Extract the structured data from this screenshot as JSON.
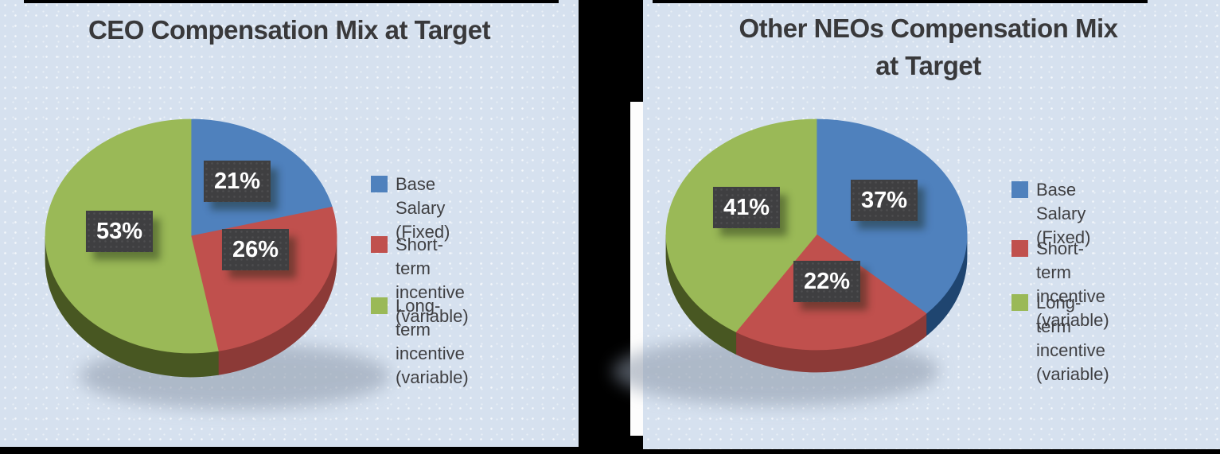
{
  "page": {
    "background_color": "#000000",
    "panel_color": "#d6e1ef",
    "divider_strip_color": "#fdfdfd",
    "title_text_color": "#39393b",
    "legend_text_color": "#3f3f42",
    "value_label_box_color": "#3f3f41",
    "value_label_text_color": "#ffffff"
  },
  "chart_data": [
    {
      "type": "pie",
      "effect": "3d",
      "title": "CEO Compensation Mix at Target",
      "legend_position": "right",
      "categories": [
        "Base Salary (Fixed)",
        "Short-term incentive (variable)",
        "Long-term incentive (variable)"
      ],
      "values": [
        21,
        26,
        53
      ],
      "unit": "%",
      "value_labels": [
        "21%",
        "26%",
        "53%"
      ],
      "series_colors": [
        "#4f81bd",
        "#c0504d",
        "#9ab957"
      ],
      "side_colors": [
        "#1f4570",
        "#8c3a37",
        "#485722"
      ],
      "legend": [
        {
          "color": "#4f81bd",
          "label": "Base Salary (Fixed)"
        },
        {
          "color": "#c0504d",
          "label": "Short-term\nincentive (variable)"
        },
        {
          "color": "#9ab957",
          "label": "Long-term\nincentive (variable)"
        }
      ]
    },
    {
      "type": "pie",
      "effect": "3d",
      "title": "Other NEOs Compensation Mix\nat Target",
      "legend_position": "right",
      "categories": [
        "Base Salary (Fixed)",
        "Short-term incentive (variable)",
        "Long-term incentive (variable)"
      ],
      "values": [
        37,
        22,
        41
      ],
      "unit": "%",
      "value_labels": [
        "37%",
        "22%",
        "41%"
      ],
      "series_colors": [
        "#4f81bd",
        "#c0504d",
        "#9ab957"
      ],
      "side_colors": [
        "#1f4570",
        "#8c3a37",
        "#485722"
      ],
      "legend": [
        {
          "color": "#4f81bd",
          "label": "Base Salary  (Fixed)"
        },
        {
          "color": "#c0504d",
          "label": "Short-term\nincentive (variable)"
        },
        {
          "color": "#9ab957",
          "label": "Long-term\nincentive (variable)"
        }
      ]
    }
  ]
}
